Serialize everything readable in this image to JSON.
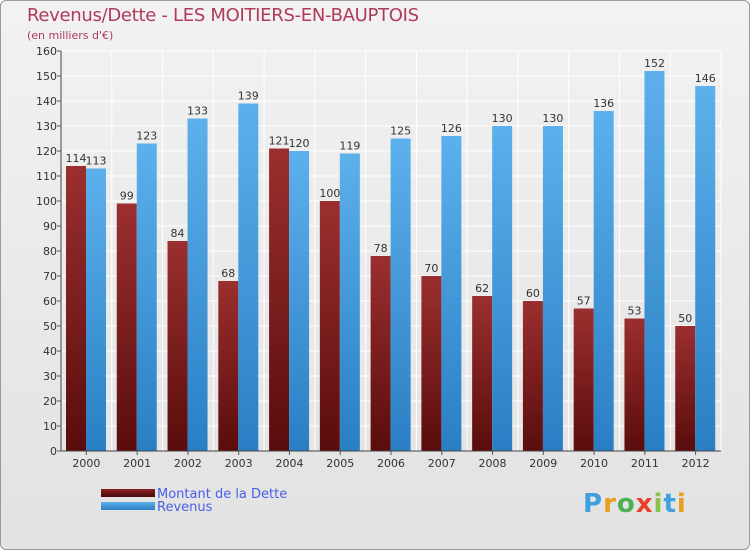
{
  "chart_data": {
    "type": "bar",
    "title": "Revenus/Dette - LES MOITIERS-EN-BAUPTOIS",
    "subtitle": "(en milliers d'€)",
    "xlabel": "",
    "ylabel": "",
    "ylim": [
      0,
      160
    ],
    "yticks": [
      0,
      10,
      20,
      30,
      40,
      50,
      60,
      70,
      80,
      90,
      100,
      110,
      120,
      130,
      140,
      150,
      160
    ],
    "grid": true,
    "categories": [
      "2000",
      "2001",
      "2002",
      "2003",
      "2004",
      "2005",
      "2006",
      "2007",
      "2008",
      "2009",
      "2010",
      "2011",
      "2012"
    ],
    "series": [
      {
        "name": "Montant de la Dette",
        "color": "#7a1a1a",
        "values": [
          114,
          99,
          84,
          68,
          121,
          100,
          78,
          70,
          62,
          60,
          57,
          53,
          50
        ]
      },
      {
        "name": "Revenus",
        "color": "#3a92d6",
        "values": [
          113,
          123,
          133,
          139,
          120,
          119,
          125,
          126,
          130,
          130,
          136,
          152,
          146
        ]
      }
    ],
    "legend": {
      "position": "bottom-left",
      "entries": [
        "Montant de la Dette",
        "Revenus"
      ]
    }
  },
  "logo": {
    "letters": [
      "P",
      "r",
      "o",
      "x",
      "i",
      "t",
      "i"
    ]
  }
}
